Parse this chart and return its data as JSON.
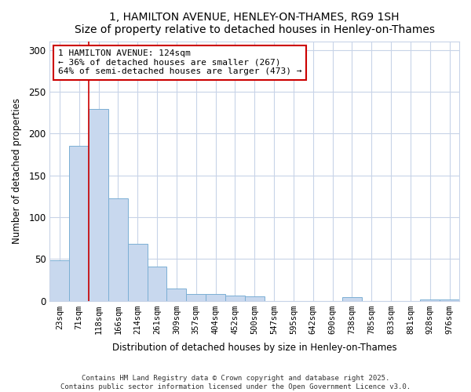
{
  "title": "1, HAMILTON AVENUE, HENLEY-ON-THAMES, RG9 1SH",
  "subtitle": "Size of property relative to detached houses in Henley-on-Thames",
  "xlabel": "Distribution of detached houses by size in Henley-on-Thames",
  "ylabel": "Number of detached properties",
  "bar_color": "#c8d8ee",
  "bar_edge_color": "#7bafd4",
  "annotation_line_color": "#cc0000",
  "annotation_box_color": "#cc0000",
  "background_color": "#ffffff",
  "plot_bg_color": "#ffffff",
  "grid_color": "#c8d4e8",
  "categories": [
    "23sqm",
    "71sqm",
    "118sqm",
    "166sqm",
    "214sqm",
    "261sqm",
    "309sqm",
    "357sqm",
    "404sqm",
    "452sqm",
    "500sqm",
    "547sqm",
    "595sqm",
    "642sqm",
    "690sqm",
    "738sqm",
    "785sqm",
    "833sqm",
    "881sqm",
    "928sqm",
    "976sqm"
  ],
  "values": [
    48,
    185,
    230,
    123,
    68,
    41,
    15,
    8,
    8,
    6,
    5,
    0,
    0,
    0,
    0,
    4,
    0,
    0,
    0,
    1,
    1
  ],
  "ylim": [
    0,
    310
  ],
  "yticks": [
    0,
    50,
    100,
    150,
    200,
    250,
    300
  ],
  "annotation_text": "1 HAMILTON AVENUE: 124sqm\n← 36% of detached houses are smaller (267)\n64% of semi-detached houses are larger (473) →",
  "annotation_bar_index": 1.5,
  "footer_line1": "Contains HM Land Registry data © Crown copyright and database right 2025.",
  "footer_line2": "Contains public sector information licensed under the Open Government Licence v3.0."
}
